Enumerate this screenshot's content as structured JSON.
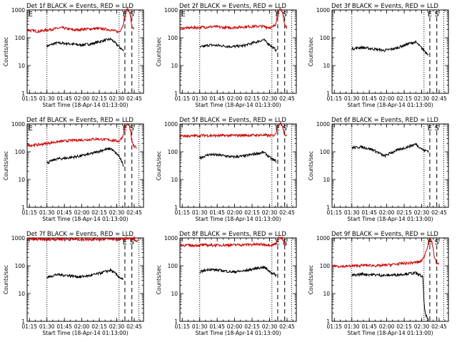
{
  "figure": {
    "colors": {
      "events": "#000000",
      "lld": "#cc0000",
      "axes": "#000000"
    }
  },
  "chart_data": [
    {
      "type": "line",
      "title": "Det 1f BLACK = Events, RED = LLD",
      "xlabel": "Start Time (18-Apr-14 01:13:00)",
      "ylabel": "Counts/sec",
      "yscale": "log",
      "ylim": [
        1,
        1000
      ],
      "xlim_minutes": [
        0,
        100
      ],
      "x_tick_labels": [
        "01:15",
        "01:30",
        "01:45",
        "02:00",
        "02:15",
        "02:30",
        "02:45"
      ],
      "y_tick_labels": [
        "1",
        "10",
        "100",
        "1000"
      ],
      "dotted_lines_minutes": [
        17,
        79,
        96
      ],
      "dashed_lines_minutes": [
        84,
        90
      ],
      "letters": [
        "E",
        "E",
        "S"
      ],
      "series": [
        {
          "name": "Events",
          "color": "#000000",
          "t": [
            17,
            25,
            35,
            45,
            55,
            65,
            72,
            79,
            83
          ],
          "v": [
            50,
            65,
            62,
            55,
            60,
            78,
            90,
            48,
            33
          ]
        },
        {
          "name": "LLD",
          "color": "#cc0000",
          "t": [
            0,
            10,
            20,
            30,
            40,
            50,
            60,
            70,
            79,
            82,
            84,
            86,
            88,
            90,
            92
          ],
          "v": [
            190,
            170,
            200,
            230,
            190,
            205,
            215,
            200,
            160,
            260,
            600,
            1100,
            900,
            250,
            210
          ]
        }
      ]
    },
    {
      "type": "line",
      "title": "Det 2f BLACK = Events, RED = LLD",
      "xlabel": "Start Time (18-Apr-14 01:13:00)",
      "ylabel": "Counts/sec",
      "yscale": "log",
      "ylim": [
        1,
        1000
      ],
      "xlim_minutes": [
        0,
        100
      ],
      "x_tick_labels": [
        "01:15",
        "01:30",
        "01:45",
        "02:00",
        "02:15",
        "02:30",
        "02:45"
      ],
      "y_tick_labels": [
        "1",
        "10",
        "100",
        "1000"
      ],
      "dotted_lines_minutes": [
        17,
        79,
        96
      ],
      "dashed_lines_minutes": [
        84,
        90
      ],
      "letters": [
        "E",
        "E",
        "S"
      ],
      "series": [
        {
          "name": "Events",
          "color": "#000000",
          "t": [
            17,
            25,
            35,
            45,
            55,
            65,
            72,
            79,
            83
          ],
          "v": [
            45,
            55,
            52,
            48,
            52,
            70,
            85,
            48,
            35
          ]
        },
        {
          "name": "LLD",
          "color": "#cc0000",
          "t": [
            0,
            10,
            20,
            30,
            40,
            50,
            60,
            70,
            79,
            82,
            84,
            86,
            88,
            90,
            92
          ],
          "v": [
            220,
            230,
            240,
            250,
            230,
            240,
            255,
            260,
            230,
            300,
            700,
            1100,
            900,
            280,
            230
          ]
        }
      ]
    },
    {
      "type": "line",
      "title": "Det 3f BLACK = Events, RED = LLD",
      "xlabel": "Start Time (18-Apr-14 01:13:00)",
      "ylabel": "Counts/sec",
      "yscale": "log",
      "ylim": [
        1,
        1000
      ],
      "xlim_minutes": [
        0,
        100
      ],
      "x_tick_labels": [
        "01:15",
        "01:30",
        "01:45",
        "02:00",
        "02:15",
        "02:30",
        "02:45"
      ],
      "y_tick_labels": [
        "1",
        "10",
        "100",
        "1000"
      ],
      "dotted_lines_minutes": [
        17,
        79,
        96
      ],
      "dashed_lines_minutes": [
        84,
        90
      ],
      "letters": [
        "E",
        "S"
      ],
      "series": [
        {
          "name": "Events",
          "color": "#000000",
          "t": [
            17,
            25,
            35,
            45,
            55,
            65,
            72,
            79,
            83
          ],
          "v": [
            40,
            45,
            40,
            35,
            42,
            60,
            70,
            35,
            25
          ]
        }
      ]
    },
    {
      "type": "line",
      "title": "Det 4f BLACK = Events, RED = LLD",
      "xlabel": "Start Time (18-Apr-14 01:13:00)",
      "ylabel": "Counts/sec",
      "yscale": "log",
      "ylim": [
        1,
        1000
      ],
      "xlim_minutes": [
        0,
        100
      ],
      "x_tick_labels": [
        "01:15",
        "01:30",
        "01:45",
        "02:00",
        "02:15",
        "02:30",
        "02:45"
      ],
      "y_tick_labels": [
        "1",
        "10",
        "100",
        "1000"
      ],
      "dotted_lines_minutes": [
        17,
        79,
        96
      ],
      "dashed_lines_minutes": [
        84,
        90
      ],
      "letters": [
        "E",
        "E",
        "S"
      ],
      "series": [
        {
          "name": "Events",
          "color": "#000000",
          "t": [
            17,
            25,
            35,
            45,
            55,
            65,
            72,
            79,
            83
          ],
          "v": [
            40,
            55,
            60,
            70,
            85,
            115,
            130,
            70,
            30
          ]
        },
        {
          "name": "LLD",
          "color": "#cc0000",
          "t": [
            0,
            10,
            20,
            30,
            40,
            50,
            60,
            70,
            79,
            82,
            84,
            86,
            88,
            90,
            92,
            94
          ],
          "v": [
            170,
            180,
            210,
            240,
            260,
            270,
            290,
            270,
            240,
            350,
            700,
            1000,
            850,
            230,
            150,
            140
          ]
        }
      ]
    },
    {
      "type": "line",
      "title": "Det 5f BLACK = Events, RED = LLD",
      "xlabel": "Start Time (18-Apr-14 01:13:00)",
      "ylabel": "Counts/sec",
      "yscale": "log",
      "ylim": [
        1,
        1000
      ],
      "xlim_minutes": [
        0,
        100
      ],
      "x_tick_labels": [
        "01:15",
        "01:30",
        "01:45",
        "02:00",
        "02:15",
        "02:30",
        "02:45"
      ],
      "y_tick_labels": [
        "1",
        "10",
        "100",
        "1000"
      ],
      "dotted_lines_minutes": [
        17,
        79,
        96
      ],
      "dashed_lines_minutes": [
        84,
        90
      ],
      "letters": [
        "E",
        "S"
      ],
      "series": [
        {
          "name": "Events",
          "color": "#000000",
          "t": [
            17,
            25,
            35,
            45,
            55,
            65,
            72,
            79,
            83
          ],
          "v": [
            60,
            80,
            75,
            65,
            70,
            85,
            95,
            55,
            45
          ]
        },
        {
          "name": "LLD",
          "color": "#cc0000",
          "t": [
            0,
            10,
            20,
            30,
            40,
            50,
            60,
            70,
            79,
            82,
            84,
            86,
            88,
            90,
            92
          ],
          "v": [
            380,
            370,
            390,
            380,
            385,
            390,
            395,
            400,
            380,
            420,
            800,
            1100,
            900,
            400,
            380
          ]
        }
      ]
    },
    {
      "type": "line",
      "title": "Det 6f BLACK = Events, RED = LLD",
      "xlabel": "Start Time (18-Apr-14 01:13:00)",
      "ylabel": "Counts/sec",
      "yscale": "log",
      "ylim": [
        1,
        1000
      ],
      "xlim_minutes": [
        0,
        100
      ],
      "x_tick_labels": [
        "01:15",
        "01:30",
        "01:45",
        "02:00",
        "02:15",
        "02:30",
        "02:45"
      ],
      "y_tick_labels": [
        "1",
        "10",
        "100",
        "1000"
      ],
      "dotted_lines_minutes": [
        17,
        79,
        96
      ],
      "dashed_lines_minutes": [
        84,
        90
      ],
      "letters": [
        "E",
        "S"
      ],
      "series": [
        {
          "name": "Events",
          "color": "#000000",
          "t": [
            17,
            25,
            35,
            45,
            50,
            55,
            65,
            72,
            79,
            83
          ],
          "v": [
            140,
            150,
            120,
            70,
            90,
            110,
            150,
            190,
            110,
            110
          ]
        }
      ]
    },
    {
      "type": "line",
      "title": "Det 7f BLACK = Events, RED = LLD",
      "xlabel": "Start Time (18-Apr-14 01:13:00)",
      "ylabel": "Counts/sec",
      "yscale": "log",
      "ylim": [
        1,
        1000
      ],
      "xlim_minutes": [
        0,
        100
      ],
      "x_tick_labels": [
        "01:15",
        "01:30",
        "01:45",
        "02:00",
        "02:15",
        "02:30",
        "02:45"
      ],
      "y_tick_labels": [
        "1",
        "10",
        "100",
        "1000"
      ],
      "dotted_lines_minutes": [
        17,
        79,
        96
      ],
      "dashed_lines_minutes": [
        84,
        90
      ],
      "letters": [
        "E",
        "S"
      ],
      "series": [
        {
          "name": "Events",
          "color": "#000000",
          "t": [
            17,
            25,
            35,
            45,
            55,
            65,
            72,
            79,
            83
          ],
          "v": [
            38,
            48,
            45,
            40,
            45,
            58,
            70,
            40,
            30
          ]
        },
        {
          "name": "LLD",
          "color": "#cc0000",
          "t": [
            0,
            10,
            20,
            30,
            40,
            50,
            60,
            70,
            79,
            82,
            84,
            86,
            88,
            90,
            92,
            94,
            96
          ],
          "v": [
            900,
            880,
            900,
            920,
            890,
            900,
            910,
            930,
            880,
            900,
            950,
            1000,
            950,
            900,
            1000,
            700,
            850
          ]
        }
      ]
    },
    {
      "type": "line",
      "title": "Det 8f BLACK = Events, RED = LLD",
      "xlabel": "Start Time (18-Apr-14 01:13:00)",
      "ylabel": "Counts/sec",
      "yscale": "log",
      "ylim": [
        1,
        1000
      ],
      "xlim_minutes": [
        0,
        100
      ],
      "x_tick_labels": [
        "01:15",
        "01:30",
        "01:45",
        "02:00",
        "02:15",
        "02:30",
        "02:45"
      ],
      "y_tick_labels": [
        "1",
        "10",
        "100",
        "1000"
      ],
      "dotted_lines_minutes": [
        17,
        79,
        96
      ],
      "dashed_lines_minutes": [
        84,
        90
      ],
      "letters": [
        "E",
        "S"
      ],
      "series": [
        {
          "name": "Events",
          "color": "#000000",
          "t": [
            17,
            25,
            35,
            45,
            55,
            65,
            72,
            79,
            83
          ],
          "v": [
            60,
            75,
            68,
            60,
            65,
            80,
            90,
            55,
            45
          ]
        },
        {
          "name": "LLD",
          "color": "#cc0000",
          "t": [
            0,
            10,
            20,
            30,
            40,
            50,
            60,
            70,
            79,
            82,
            84,
            86,
            88,
            90,
            92
          ],
          "v": [
            560,
            540,
            560,
            550,
            560,
            570,
            580,
            590,
            560,
            600,
            900,
            1100,
            950,
            560,
            540
          ]
        }
      ]
    },
    {
      "type": "line",
      "title": "Det 9f BLACK = Events, RED = LLD",
      "xlabel": "Start Time (18-Apr-14 01:13:00)",
      "ylabel": "Counts/sec",
      "yscale": "log",
      "ylim": [
        1,
        1000
      ],
      "xlim_minutes": [
        0,
        100
      ],
      "x_tick_labels": [
        "01:15",
        "01:30",
        "01:45",
        "02:00",
        "02:15",
        "02:30",
        "02:45"
      ],
      "y_tick_labels": [
        "1",
        "10",
        "100",
        "1000"
      ],
      "dotted_lines_minutes": [
        17,
        79,
        96
      ],
      "dashed_lines_minutes": [
        84,
        90
      ],
      "letters": [
        "E",
        "S"
      ],
      "series": [
        {
          "name": "Events",
          "color": "#000000",
          "t": [
            17,
            25,
            35,
            45,
            55,
            65,
            72,
            78,
            79,
            80,
            83
          ],
          "v": [
            45,
            50,
            48,
            45,
            47,
            52,
            55,
            40,
            5,
            2,
            1
          ]
        },
        {
          "name": "LLD",
          "color": "#cc0000",
          "t": [
            0,
            10,
            20,
            30,
            40,
            50,
            60,
            70,
            76,
            79,
            82,
            84,
            86,
            88,
            90,
            92
          ],
          "v": [
            100,
            95,
            100,
            105,
            100,
            110,
            120,
            130,
            140,
            200,
            500,
            900,
            700,
            200,
            120,
            110
          ]
        }
      ]
    }
  ]
}
